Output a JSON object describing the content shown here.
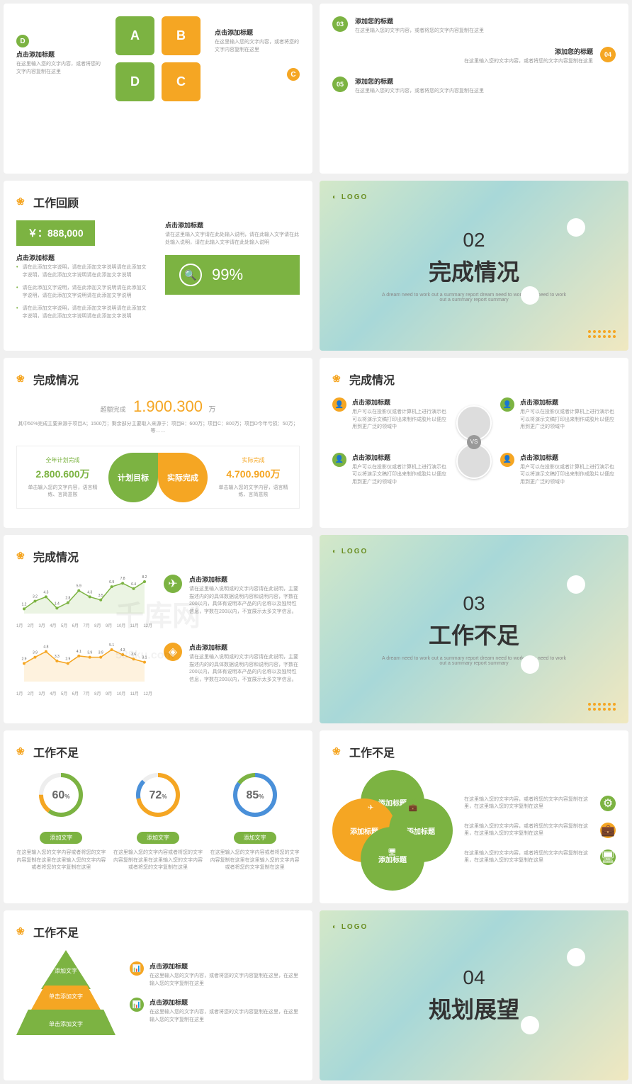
{
  "colors": {
    "green": "#7cb342",
    "orange": "#f5a623",
    "text": "#333333",
    "muted": "#999999",
    "bg": "#ffffff"
  },
  "watermark": {
    "main": "千库网",
    "sub": "588ku.com"
  },
  "common": {
    "click_title": "点击添加标题",
    "add_your_title": "添加您的标题",
    "add_text": "添加文字",
    "add_title": "添加标题",
    "desc_short": "在这里输入您的文字内容，或者将您的文字内容复制在这里",
    "desc_med": "请在此添加文字说明，请在此添加文字说明请在此添加文字说明，请在此添加文字说明请在此添加文字说明",
    "desc_long": "请在这里输入文字请在此处输入说明，请在此输入文字请在此处输入说明，请在此输入文字请在此处输入说明"
  },
  "s1": {
    "items": [
      {
        "letter": "A",
        "title": "点击添加标题"
      },
      {
        "letter": "B",
        "title": "点击添加标题"
      },
      {
        "letter": "C",
        "title": "点击添加标题"
      },
      {
        "letter": "D",
        "title": "点击添加标题"
      }
    ]
  },
  "s2": {
    "items": [
      {
        "num": "03",
        "color": "green"
      },
      {
        "num": "04",
        "color": "orange"
      },
      {
        "num": "05",
        "color": "green"
      }
    ]
  },
  "s3": {
    "title": "工作回顾",
    "price": "￥：888,000",
    "pct": "99%",
    "bullets": 3
  },
  "s4": {
    "logo": "LOGO",
    "num": "02",
    "title": "完成情况",
    "sub": "A dream need to work out a summary report dream need to work out a need to work out a summary report summary"
  },
  "s5": {
    "title": "完成情况",
    "over_label": "超额完成",
    "over_val": "1.900.300",
    "unit": "万",
    "note": "其中50%完成主要来源于项目A；1500万；剩余部分主要取入来源于：项目B：600万；项目C：800万；项目D今年亏损：50万；等……",
    "plan": {
      "label": "全年计划完成",
      "val": "2.800.600万",
      "note": "单击输入您的文字内容，语言精练、言简意赅",
      "circle": "计划目标",
      "color": "#7cb342"
    },
    "actual": {
      "label": "实际完成",
      "val": "4.700.900万",
      "note": "单击输入您的文字内容，语言精练、言简意赅",
      "circle": "实际完成",
      "color": "#f5a623"
    }
  },
  "s6": {
    "title": "完成情况",
    "vs": "VS",
    "item_title": "点击添加标题",
    "item_desc": "用户可以在投影仪或者计算机上进行演示也可以将演示文稿打印出来制作成胶片以便应用到更广泛的领域中"
  },
  "s7": {
    "title": "完成情况",
    "months": [
      "1月",
      "2月",
      "3月",
      "4月",
      "5月",
      "6月",
      "7月",
      "8月",
      "9月",
      "10月",
      "11月",
      "12月"
    ],
    "chart1": {
      "values": [
        1.2,
        3.2,
        4.3,
        1.4,
        2.8,
        5.9,
        4.3,
        3.5,
        6.9,
        7.8,
        6.4,
        8.2
      ],
      "stroke": "#7cb342",
      "fill": "rgba(124,179,66,0.15)"
    },
    "chart2": {
      "values": [
        2.9,
        3.9,
        4.8,
        3.3,
        2.9,
        4.1,
        3.9,
        3.9,
        5.1,
        4.3,
        3.6,
        3.1
      ],
      "stroke": "#f5a623",
      "fill": "rgba(245,166,35,0.15)"
    },
    "item_desc": "请在这里输入说明或的文字内容请在此说明，主要描述内的的具体数据说明内容和说明内容，字数在200以内，具体有说明本产品的内名称以及独特性信息，字数在200以内，不宜展示太多文字信息。"
  },
  "s8": {
    "logo": "LOGO",
    "num": "03",
    "title": "工作不足",
    "sub": "A dream need to work out a summary report dream need to work out a need to work out a summary report summary"
  },
  "s9": {
    "title": "工作不足",
    "donuts": [
      {
        "pct": 60,
        "color1": "#7cb342",
        "color2": "#f5a623"
      },
      {
        "pct": 72,
        "color1": "#f5a623",
        "color2": "#4a90d9"
      },
      {
        "pct": 85,
        "color1": "#4a90d9",
        "color2": "#7cb342"
      }
    ],
    "pill": "添加文字",
    "desc": "在这里输入您的文字内容或者将您的文字内容复制在这里在这里输入您的文字内容或者将您的文字复制在这里"
  },
  "s10": {
    "title": "工作不足",
    "circles": [
      "添加标题",
      "添加标题",
      "添加标题",
      "添加标题"
    ],
    "item_desc": "在这里输入您的文字内容，或者将您的文字内容复制在这里，在这里输入您的文字复制在这里"
  },
  "s11": {
    "title": "工作不足",
    "levels": [
      "添加文字",
      "单击添加文字",
      "单击添加文字"
    ],
    "item_desc": "在这里输入您的文字内容，或者将您的文字内容复制在这里，在这里输入您的文字复制在这里"
  },
  "s12": {
    "logo": "LOGO",
    "num": "04",
    "title": "规划展望"
  }
}
